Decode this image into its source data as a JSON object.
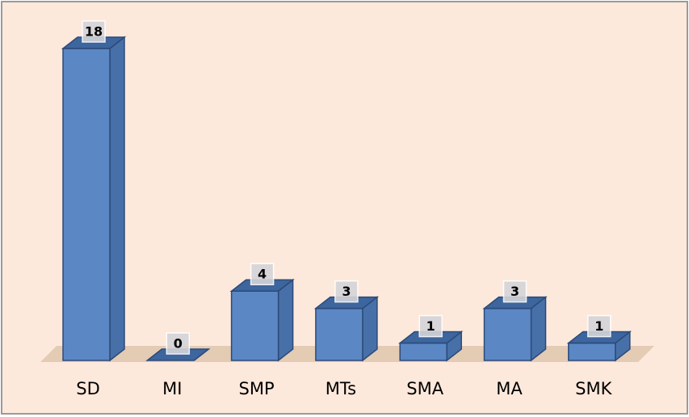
{
  "chart_data": {
    "type": "bar3d",
    "categories": [
      "SD",
      "MI",
      "SMP",
      "MTs",
      "SMA",
      "MA",
      "SMK"
    ],
    "values": [
      18,
      0,
      4,
      3,
      1,
      3,
      1
    ],
    "color": "#5b87c5"
  }
}
